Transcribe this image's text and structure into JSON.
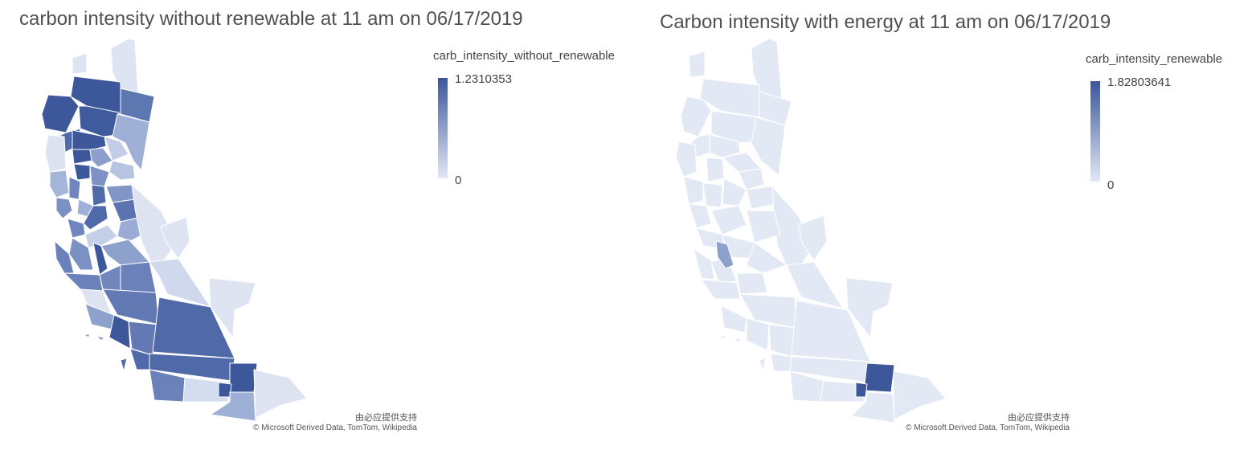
{
  "left_map": {
    "title": "carbon intensity without renewable at 11 am on 06/17/2019",
    "legend": {
      "title": "carb_intensity_without_renewable",
      "max": "1.2310353",
      "min": "0"
    },
    "attribution": {
      "provider": "由必应提供支持",
      "credits": "© Microsoft Derived Data, TomTom, Wikipedia"
    },
    "colors": {
      "high": "#3a559a",
      "low": "#e3e8f5"
    }
  },
  "right_map": {
    "title": "Carbon intensity with energy at 11 am on 06/17/2019",
    "legend": {
      "title": "carb_intensity_renewable",
      "max": "1.82803641",
      "min": "0"
    },
    "attribution": {
      "provider": "由必应提供支持",
      "credits": "© Microsoft Derived Data, TomTom, Wikipedia"
    },
    "colors": {
      "high": "#3a559a",
      "low": "#e3e8f5"
    }
  }
}
